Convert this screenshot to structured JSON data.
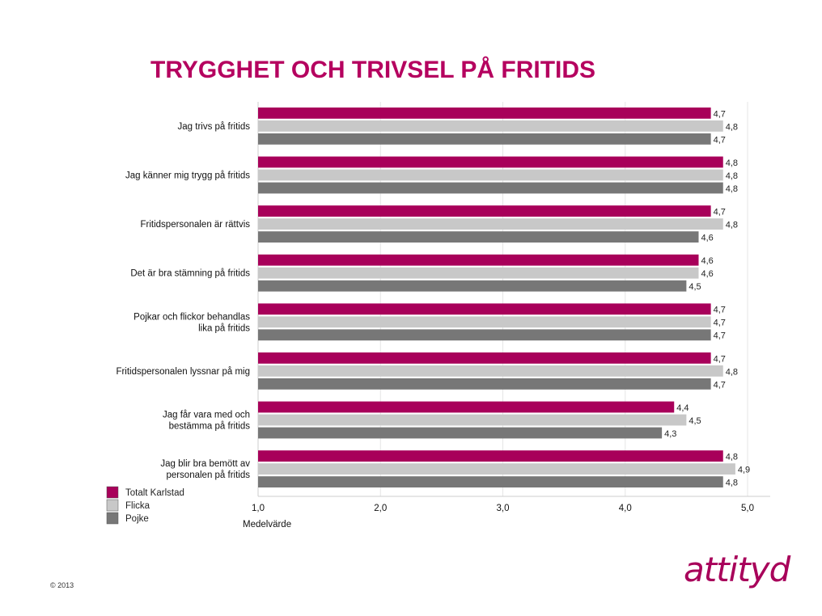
{
  "slide": {
    "title": "TRYGGHET OCH TRIVSEL PÅ FRITIDS",
    "copyright": "© 2013",
    "logo_text": "attityd"
  },
  "colors": {
    "title": "#b5005f",
    "totalt": "#a8005a",
    "flicka": "#c8c8c8",
    "pojke": "#777777",
    "logo": "#a8005a"
  },
  "chart_data": {
    "type": "bar",
    "orientation": "horizontal",
    "categories": [
      [
        "Jag trivs på fritids"
      ],
      [
        "Jag känner mig trygg på fritids"
      ],
      [
        "Fritidspersonalen är rättvis"
      ],
      [
        "Det är bra stämning på fritids"
      ],
      [
        "Pojkar och flickor behandlas",
        "lika på fritids"
      ],
      [
        "Fritidspersonalen lyssnar på mig"
      ],
      [
        "Jag får vara med och",
        "bestämma på fritids"
      ],
      [
        "Jag blir bra bemött av",
        "personalen på fritids"
      ]
    ],
    "series": [
      {
        "name": "Totalt Karlstad",
        "values": [
          4.7,
          4.8,
          4.7,
          4.6,
          4.7,
          4.7,
          4.4,
          4.8
        ],
        "labels": [
          "4,7",
          "4,8",
          "4,7",
          "4,6",
          "4,7",
          "4,7",
          "4,4",
          "4,8"
        ]
      },
      {
        "name": "Flicka",
        "values": [
          4.8,
          4.8,
          4.8,
          4.6,
          4.7,
          4.8,
          4.5,
          4.9
        ],
        "labels": [
          "4,8",
          "4,8",
          "4,8",
          "4,6",
          "4,7",
          "4,8",
          "4,5",
          "4,9"
        ]
      },
      {
        "name": "Pojke",
        "values": [
          4.7,
          4.8,
          4.6,
          4.5,
          4.7,
          4.7,
          4.3,
          4.8
        ],
        "labels": [
          "4,7",
          "4,8",
          "4,6",
          "4,5",
          "4,7",
          "4,7",
          "4,3",
          "4,8"
        ]
      }
    ],
    "xlim": [
      1.0,
      5.0
    ],
    "xticks": [
      1.0,
      2.0,
      3.0,
      4.0,
      5.0
    ],
    "xtick_labels": [
      "1,0",
      "2,0",
      "3,0",
      "4,0",
      "5,0"
    ],
    "xlabel": "Medelvärde",
    "ylabel": "",
    "grid": true,
    "legend_position": "bottom-left"
  }
}
